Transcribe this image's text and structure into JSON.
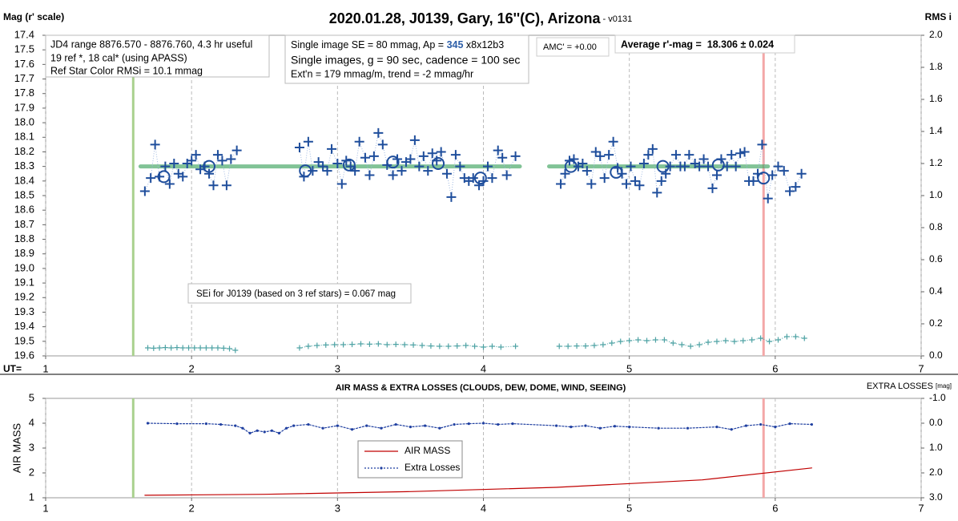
{
  "chart_data": [
    {
      "type": "scatter",
      "title": "2020.01.28, J0139, Gary, 16''(C), Arizona",
      "subtitle": " - v0131",
      "ylabel": "Mag (r' scale)",
      "y2label": "RMS i",
      "xlabel": "UT=",
      "xlim": [
        1,
        7
      ],
      "xticks": [
        1,
        2,
        3,
        4,
        5,
        6,
        7
      ],
      "ylim": [
        17.4,
        19.6
      ],
      "y_inverted": true,
      "yticks": [
        17.4,
        17.5,
        17.6,
        17.7,
        17.8,
        17.9,
        {
          "value": 18,
          "label": "18.0"
        },
        18.1,
        18.2,
        18.3,
        18.4,
        18.5,
        18.6,
        18.7,
        18.8,
        18.9,
        {
          "value": 19,
          "label": "19.0"
        },
        19.1,
        19.2,
        19.3,
        19.4,
        19.5,
        19.6
      ],
      "y2lim": [
        0,
        2
      ],
      "y2_inverted": false,
      "y2ticks": [
        {
          "value": 0,
          "label": "0.0"
        },
        0.2,
        0.4,
        0.6,
        0.8,
        {
          "value": 1,
          "label": "1.0"
        },
        1.2,
        1.4,
        1.6,
        1.8,
        {
          "value": 2,
          "label": "2.0"
        }
      ],
      "grid": true,
      "vlines": [
        {
          "x": 1.6,
          "color": "#a9d18e"
        },
        {
          "x": 5.92,
          "color": "#f4a7a7"
        }
      ],
      "notes": {
        "range": [
          "JD4 range 8876.570 - 8876.760, 4.3 hr useful",
          "19 ref *, 18 cal* (using APASS)",
          "Ref Star Color RMSi = 10.1 mmag"
        ],
        "image": [
          [
            "Single image SE = 80 mmag, Ap = ",
            "345",
            " x8x12b3"
          ],
          "Single images, g = 90 sec, cadence = 100 sec",
          "Ext'n = 179 mmag/m, trend = -2 mmag/hr"
        ],
        "amc": "AMC' = +0.00",
        "average": "Average r'-mag =  18.306 ± 0.024",
        "sei": "SEi for J0139 (based on 3 ref stars) = 0.067 mag"
      },
      "series": [
        {
          "mark": "line",
          "color": "#3da35d",
          "width": 5,
          "x": [
            1.65,
            4.25
          ],
          "values": [
            18.3,
            18.3
          ]
        },
        {
          "mark": "line",
          "color": "#3da35d",
          "width": 5,
          "x": [
            4.45,
            5.95
          ],
          "values": [
            18.3,
            18.3
          ]
        },
        {
          "mark": "plus",
          "color": "#1f4e9c",
          "size": 6,
          "link_color": "#9db7e0",
          "x": [
            1.68,
            1.72,
            1.75,
            1.78,
            1.82,
            1.85,
            1.88,
            1.91,
            1.94,
            1.97,
            2.0,
            2.03,
            2.06,
            2.09,
            2.12,
            2.15,
            2.18,
            2.21,
            2.24,
            2.27,
            2.31
          ],
          "values": [
            18.47,
            18.38,
            18.15,
            18.37,
            18.3,
            18.42,
            18.28,
            18.35,
            18.37,
            18.28,
            18.26,
            18.22,
            18.32,
            18.3,
            18.35,
            18.43,
            18.22,
            18.26,
            18.43,
            18.25,
            18.19
          ]
        },
        {
          "mark": "plus",
          "color": "#1f4e9c",
          "size": 6,
          "link_color": "#9db7e0",
          "x": [
            2.74,
            2.77,
            2.8,
            2.83,
            2.87,
            2.9,
            2.93,
            2.96,
            3.0,
            3.03,
            3.06,
            3.09,
            3.12,
            3.15,
            3.19,
            3.22,
            3.25,
            3.28,
            3.31,
            3.34,
            3.38,
            3.41,
            3.44,
            3.47,
            3.5,
            3.53,
            3.56,
            3.59,
            3.62,
            3.65,
            3.68,
            3.71,
            3.75,
            3.78,
            3.81,
            3.84,
            3.87,
            3.9,
            3.93,
            3.97,
            4.0,
            4.03,
            4.06,
            4.1,
            4.13,
            4.16,
            4.22
          ],
          "values": [
            18.17,
            18.37,
            18.13,
            18.33,
            18.27,
            18.3,
            18.33,
            18.18,
            18.28,
            18.42,
            18.26,
            18.3,
            18.33,
            18.13,
            18.24,
            18.36,
            18.23,
            18.07,
            18.15,
            18.29,
            18.36,
            18.25,
            18.33,
            18.27,
            18.25,
            18.12,
            18.3,
            18.23,
            18.33,
            18.21,
            18.26,
            18.2,
            18.35,
            18.51,
            18.22,
            18.3,
            18.38,
            18.4,
            18.38,
            18.43,
            18.4,
            18.3,
            18.38,
            18.19,
            18.24,
            18.36,
            18.23
          ]
        },
        {
          "mark": "plus",
          "color": "#1f4e9c",
          "size": 6,
          "link_color": "#9db7e0",
          "x": [
            4.53,
            4.56,
            4.59,
            4.62,
            4.65,
            4.68,
            4.71,
            4.74,
            4.77,
            4.8,
            4.83,
            4.86,
            4.89,
            4.92,
            4.95,
            4.98,
            5.01,
            5.04,
            5.07,
            5.1,
            5.13,
            5.16,
            5.19,
            5.22,
            5.25,
            5.28,
            5.32,
            5.35,
            5.38,
            5.41,
            5.45,
            5.48,
            5.51,
            5.54,
            5.57,
            5.6,
            5.63,
            5.67,
            5.7,
            5.73,
            5.76,
            5.79,
            5.82,
            5.85,
            5.88,
            5.91,
            5.95,
            5.98,
            6.02,
            6.06,
            6.1,
            6.14,
            6.18
          ],
          "values": [
            18.42,
            18.35,
            18.26,
            18.25,
            18.3,
            18.28,
            18.33,
            18.42,
            18.2,
            18.23,
            18.38,
            18.22,
            18.13,
            18.31,
            18.35,
            18.42,
            18.3,
            18.4,
            18.43,
            18.28,
            18.22,
            18.18,
            18.48,
            18.4,
            18.35,
            18.3,
            18.22,
            18.3,
            18.3,
            18.22,
            18.28,
            18.3,
            18.25,
            18.3,
            18.45,
            18.36,
            18.25,
            18.3,
            18.22,
            18.3,
            18.21,
            18.2,
            18.4,
            18.4,
            18.35,
            18.15,
            18.52,
            18.36,
            18.3,
            18.33,
            18.47,
            18.44,
            18.35
          ]
        },
        {
          "mark": "circle",
          "color": "#1f4e9c",
          "size": 7,
          "x": [
            1.81,
            2.12,
            2.78,
            3.08,
            3.38,
            3.69,
            3.98,
            4.6,
            4.91,
            5.23,
            5.61,
            5.92
          ],
          "values": [
            18.37,
            18.3,
            18.33,
            18.29,
            18.27,
            18.28,
            18.38,
            18.3,
            18.34,
            18.3,
            18.29,
            18.38
          ]
        },
        {
          "mark": "plus",
          "axis": "y2",
          "color": "#4fa3a5",
          "size": 3.5,
          "link_color": "#4fa3a5",
          "x": [
            1.7,
            1.74,
            1.78,
            1.82,
            1.86,
            1.9,
            1.94,
            1.98,
            2.02,
            2.06,
            2.1,
            2.14,
            2.18,
            2.22,
            2.26,
            2.3
          ],
          "values": [
            0.05,
            0.048,
            0.05,
            0.052,
            0.05,
            0.052,
            0.05,
            0.05,
            0.05,
            0.05,
            0.05,
            0.05,
            0.05,
            0.048,
            0.045,
            0.035
          ]
        },
        {
          "mark": "plus",
          "axis": "y2",
          "color": "#4fa3a5",
          "size": 3.5,
          "link_color": "#4fa3a5",
          "x": [
            2.74,
            2.8,
            2.86,
            2.92,
            2.98,
            3.04,
            3.1,
            3.16,
            3.22,
            3.28,
            3.34,
            3.4,
            3.46,
            3.52,
            3.58,
            3.64,
            3.7,
            3.76,
            3.82,
            3.88,
            3.94,
            4.0,
            4.06,
            4.12,
            4.22
          ],
          "values": [
            0.05,
            0.06,
            0.065,
            0.068,
            0.07,
            0.07,
            0.072,
            0.075,
            0.073,
            0.075,
            0.07,
            0.072,
            0.07,
            0.068,
            0.065,
            0.062,
            0.06,
            0.06,
            0.062,
            0.065,
            0.06,
            0.055,
            0.06,
            0.055,
            0.06
          ]
        },
        {
          "mark": "plus",
          "axis": "y2",
          "color": "#4fa3a5",
          "size": 3.5,
          "link_color": "#4fa3a5",
          "x": [
            4.52,
            4.58,
            4.64,
            4.7,
            4.76,
            4.82,
            4.88,
            4.94,
            5.0,
            5.06,
            5.12,
            5.18,
            5.24,
            5.3,
            5.36,
            5.42,
            5.48,
            5.54,
            5.6,
            5.66,
            5.72,
            5.78,
            5.84,
            5.9,
            5.96,
            6.02,
            6.08,
            6.14,
            6.2
          ],
          "values": [
            0.06,
            0.06,
            0.062,
            0.062,
            0.065,
            0.07,
            0.08,
            0.09,
            0.095,
            0.1,
            0.095,
            0.1,
            0.1,
            0.08,
            0.07,
            0.06,
            0.07,
            0.085,
            0.09,
            0.095,
            0.09,
            0.095,
            0.1,
            0.11,
            0.09,
            0.1,
            0.12,
            0.12,
            0.11
          ]
        }
      ]
    },
    {
      "type": "line",
      "title": "AIR MASS & EXTRA LOSSES (CLOUDS, DEW, DOME, WIND, SEEING)",
      "ylabel": "AIR MASS",
      "y2label": "EXTRA LOSSES",
      "y2unit": "[mag]",
      "xlim": [
        1,
        7
      ],
      "xticks": [
        1,
        2,
        3,
        4,
        5,
        6,
        7
      ],
      "ylim": [
        1,
        5
      ],
      "y_inverted": false,
      "yticks": [
        1,
        2,
        3,
        4,
        5
      ],
      "y2lim": [
        -1,
        3
      ],
      "y2_inverted": true,
      "y2ticks": [
        {
          "value": -1,
          "label": "-1.0"
        },
        {
          "value": 0,
          "label": "0.0"
        },
        {
          "value": 1,
          "label": "1.0"
        },
        {
          "value": 2,
          "label": "2.0"
        },
        {
          "value": 3,
          "label": "3.0"
        }
      ],
      "grid": true,
      "legend": true,
      "vlines": [
        {
          "x": 1.6,
          "color": "#a9d18e"
        },
        {
          "x": 5.92,
          "color": "#f4a7a7"
        }
      ],
      "series": [
        {
          "name": "AIR MASS",
          "mark": "line",
          "color": "#c00000",
          "width": 1.2,
          "x": [
            1.68,
            2.5,
            3.5,
            4.5,
            5.5,
            6.25
          ],
          "values": [
            1.1,
            1.14,
            1.25,
            1.42,
            1.72,
            2.2
          ]
        },
        {
          "name": "Extra Losses",
          "mark": "line",
          "axis": "y2",
          "color": "#1f3fa0",
          "width": 1.2,
          "dash": true,
          "dots": true,
          "x": [
            1.7,
            1.9,
            2.1,
            2.2,
            2.3,
            2.35,
            2.4,
            2.45,
            2.5,
            2.55,
            2.6,
            2.65,
            2.7,
            2.8,
            2.9,
            3.0,
            3.1,
            3.2,
            3.3,
            3.4,
            3.5,
            3.6,
            3.7,
            3.8,
            3.9,
            4.0,
            4.1,
            4.2,
            4.5,
            4.6,
            4.7,
            4.8,
            4.9,
            5.0,
            5.2,
            5.4,
            5.6,
            5.7,
            5.8,
            5.9,
            6.0,
            6.1,
            6.25
          ],
          "values": [
            0,
            0.02,
            0.02,
            0.05,
            0.1,
            0.2,
            0.4,
            0.3,
            0.35,
            0.3,
            0.4,
            0.2,
            0.1,
            0.05,
            0.2,
            0.1,
            0.25,
            0.1,
            0.2,
            0.05,
            0.15,
            0.1,
            0.2,
            0.05,
            0.02,
            0,
            0.05,
            0.02,
            0.1,
            0.15,
            0.1,
            0.2,
            0.12,
            0.15,
            0.2,
            0.2,
            0.15,
            0.25,
            0.1,
            0.05,
            0.15,
            0.02,
            0.05
          ]
        }
      ]
    }
  ]
}
